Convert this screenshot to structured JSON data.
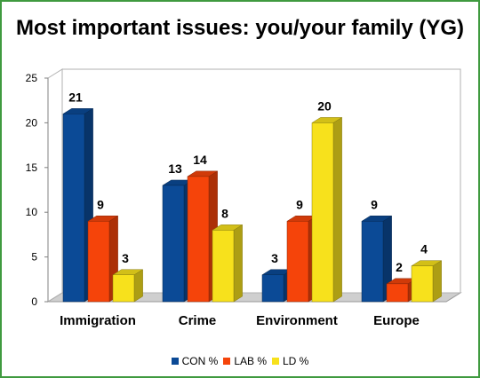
{
  "chart_data": {
    "type": "bar",
    "title": "Most important issues: you/your family (YG)",
    "categories": [
      "Immigration",
      "Crime",
      "Environment",
      "Europe"
    ],
    "series": [
      {
        "name": "CON %",
        "values": [
          21,
          13,
          3,
          9
        ],
        "color": "#0b4a96"
      },
      {
        "name": "LAB %",
        "values": [
          9,
          14,
          9,
          2
        ],
        "color": "#f5440a"
      },
      {
        "name": "LD %",
        "values": [
          3,
          8,
          20,
          4
        ],
        "color": "#f7e11c"
      }
    ],
    "y_ticks": [
      "0",
      "5",
      "10",
      "15",
      "20",
      "25"
    ],
    "ylim": [
      0,
      25
    ],
    "xlabel": "",
    "ylabel": "",
    "legend_position": "bottom",
    "grid": false,
    "style": "3d-bar",
    "frame_color": "#3f9a3f"
  }
}
